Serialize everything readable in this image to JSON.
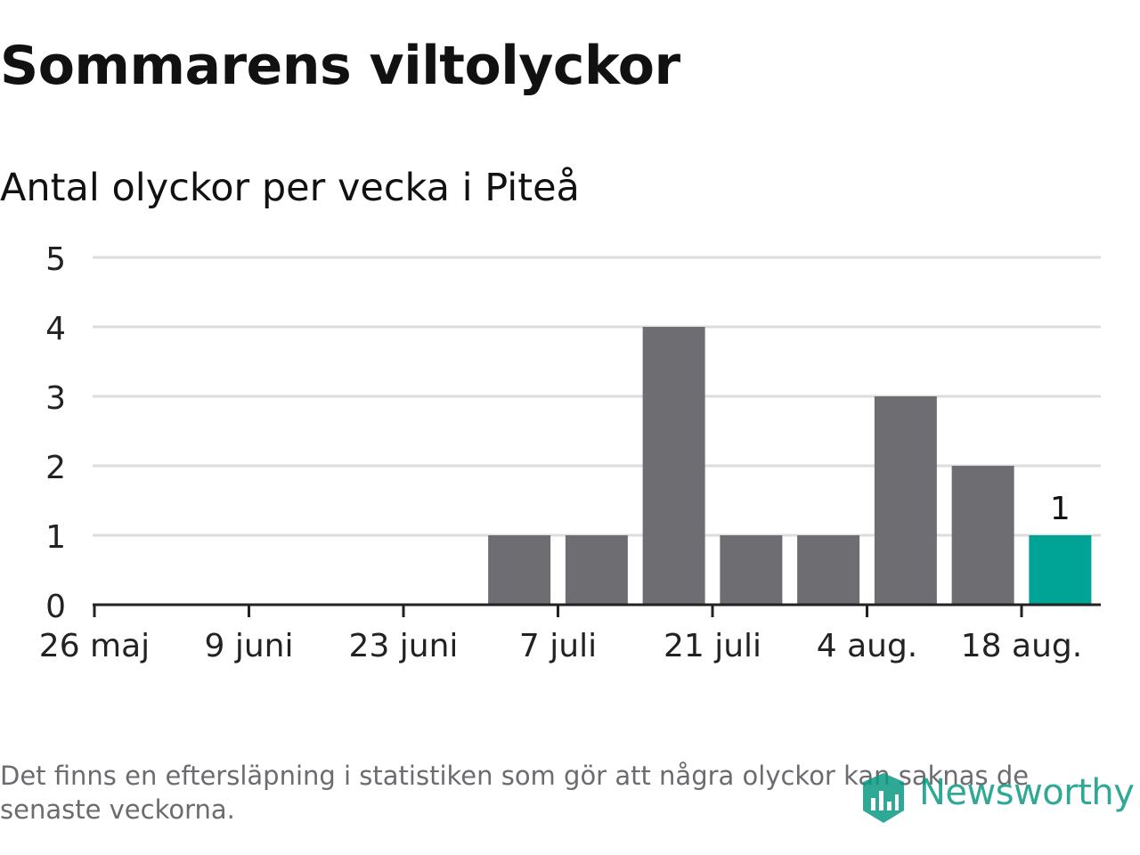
{
  "title": "Sommarens viltolyckor",
  "subtitle": "Antal olyckor per vecka i Piteå",
  "footnote": "Det finns en eftersläpning i statistiken som gör att några olyckor kan saknas de senaste veckorna.",
  "logo": {
    "text": "Newsworthy",
    "icon": "newsworthy-logo-icon"
  },
  "colors": {
    "bar": "#6e6d72",
    "highlight": "#00a497",
    "grid": "#dddddd",
    "axis": "#222222",
    "logo": "#0b9a84"
  },
  "chart_data": {
    "type": "bar",
    "title": "Sommarens viltolyckor",
    "subtitle": "Antal olyckor per vecka i Piteå",
    "xlabel": "",
    "ylabel": "",
    "x": [
      "2019-05-26",
      "2019-06-02",
      "2019-06-09",
      "2019-06-16",
      "2019-06-23",
      "2019-06-30",
      "2019-07-07",
      "2019-07-14",
      "2019-07-21",
      "2019-07-28",
      "2019-08-04",
      "2019-08-11",
      "2019-08-18"
    ],
    "values": [
      0,
      0,
      0,
      0,
      0,
      1,
      1,
      4,
      1,
      1,
      3,
      2,
      1
    ],
    "highlight_last": true,
    "data_labels": [
      {
        "x": "2019-08-18",
        "text": "1"
      }
    ],
    "x_ticks": [
      {
        "x": "2019-05-26",
        "label": "26 maj"
      },
      {
        "x": "2019-06-09",
        "label": "9 juni"
      },
      {
        "x": "2019-06-23",
        "label": "23 juni"
      },
      {
        "x": "2019-07-07",
        "label": "7 juli"
      },
      {
        "x": "2019-07-21",
        "label": "21 juli"
      },
      {
        "x": "2019-08-04",
        "label": "4 aug."
      },
      {
        "x": "2019-08-18",
        "label": "18 aug."
      }
    ],
    "y_ticks": [
      0,
      1,
      2,
      3,
      4,
      5
    ],
    "ylim": [
      0,
      5
    ],
    "grid": true,
    "legend": "none"
  }
}
